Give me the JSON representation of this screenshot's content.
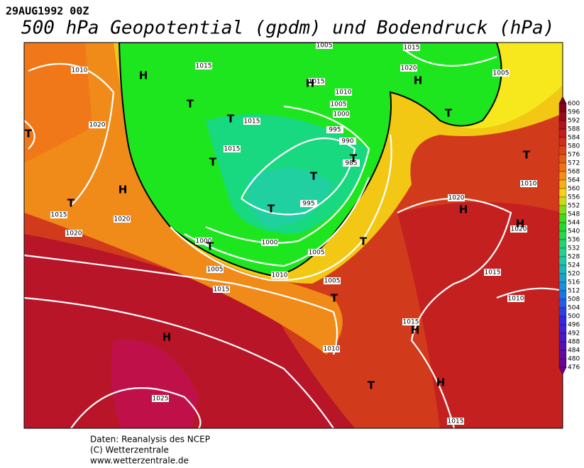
{
  "header": {
    "date": "29AUG1992 00Z",
    "title": "500 hPa Geopotential (gpdm) und Bodendruck (hPa)"
  },
  "colorbar": {
    "labels": [
      600,
      596,
      592,
      588,
      584,
      580,
      576,
      572,
      568,
      564,
      560,
      556,
      552,
      548,
      544,
      540,
      536,
      532,
      528,
      524,
      520,
      516,
      512,
      508,
      504,
      500,
      496,
      492,
      488,
      484,
      480,
      476
    ]
  },
  "map": {
    "isobar_labels": [
      "1010",
      "1020",
      "1015",
      "1020",
      "1020",
      "1015",
      "1015",
      "1015",
      "1005",
      "1015",
      "1020",
      "1005",
      "1015",
      "1010",
      "1005",
      "1000",
      "995",
      "990",
      "985",
      "995",
      "1000",
      "1000",
      "1005",
      "1005",
      "1010",
      "1015",
      "1005",
      "1020",
      "1020",
      "1010",
      "1015",
      "1010",
      "1015",
      "1010",
      "1025",
      "1015"
    ],
    "pressure_centers": [
      "H",
      "T",
      "T",
      "T",
      "H",
      "T",
      "T",
      "H",
      "H",
      "T",
      "T",
      "T",
      "T",
      "T",
      "T",
      "T",
      "H",
      "H",
      "T",
      "H",
      "H",
      "T",
      "H"
    ]
  },
  "footer": {
    "lines": [
      "Daten: Reanalysis des NCEP",
      "(C) Wetterzentrale",
      "www.wetterzentrale.de"
    ]
  }
}
